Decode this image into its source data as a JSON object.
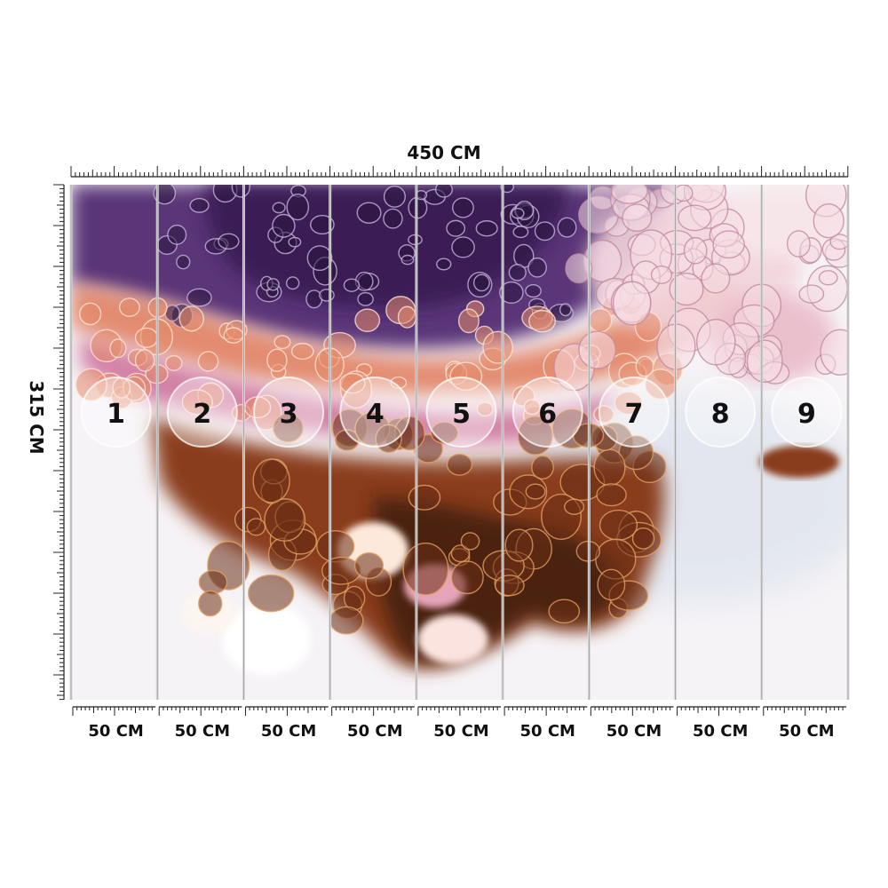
{
  "width_label": "450 CM",
  "height_label": "315 CM",
  "panel_width_label": "50 CM",
  "panels": [
    {
      "number": "1",
      "width_label": "50 CM"
    },
    {
      "number": "2",
      "width_label": "50 CM"
    },
    {
      "number": "3",
      "width_label": "50 CM"
    },
    {
      "number": "4",
      "width_label": "50 CM"
    },
    {
      "number": "5",
      "width_label": "50 CM"
    },
    {
      "number": "6",
      "width_label": "50 CM"
    },
    {
      "number": "7",
      "width_label": "50 CM"
    },
    {
      "number": "8",
      "width_label": "50 CM"
    },
    {
      "number": "9",
      "width_label": "50 CM"
    }
  ],
  "colors": {
    "deep_purple": "#3a1f55",
    "violet": "#7a4a9a",
    "lavender": "#b596c8",
    "pink": "#e6a4b8",
    "copper": "#a4542a",
    "amber": "#d9902f",
    "dark_brown": "#3b1a10",
    "white": "#f6f3f6",
    "pale_blue": "#dfe4ee"
  }
}
